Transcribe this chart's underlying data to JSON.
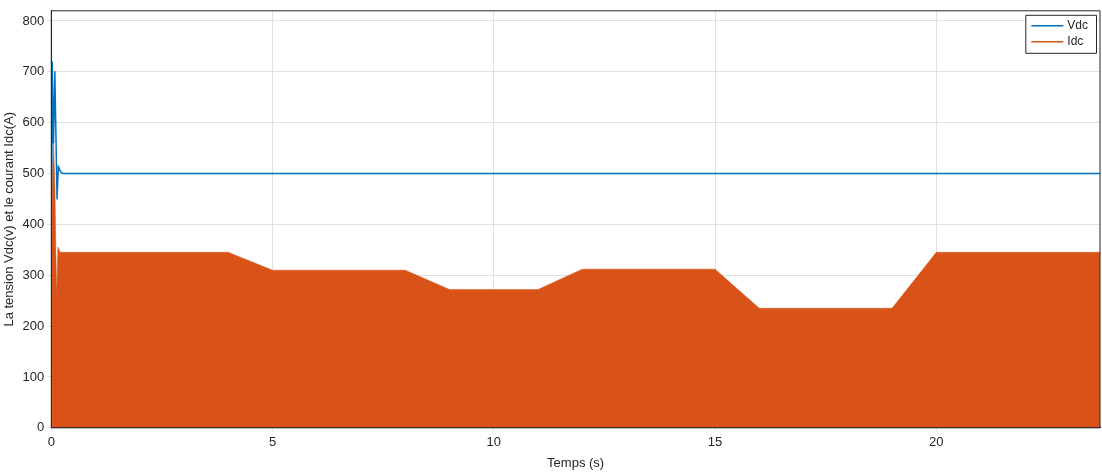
{
  "chart_data": {
    "type": "line",
    "xlabel": "Temps (s)",
    "ylabel": "La tension Vdc(v) et le courant Idc(A)",
    "xlim": [
      0,
      23.7
    ],
    "ylim": [
      0,
      820
    ],
    "xticks": [
      0,
      5,
      10,
      15,
      20
    ],
    "yticks": [
      0,
      100,
      200,
      300,
      400,
      500,
      600,
      700,
      800
    ],
    "grid": true,
    "legend": "top right",
    "line_style": "solid",
    "marker": "none",
    "series": [
      {
        "name": "Vdc",
        "color": "#0072bd",
        "x": [
          0,
          0.02,
          0.05,
          0.08,
          0.1,
          0.13,
          0.16,
          0.2,
          0.25,
          0.3,
          1,
          5,
          10,
          15,
          20,
          23.7
        ],
        "values": [
          0,
          720,
          560,
          700,
          600,
          450,
          515,
          505,
          500,
          500,
          500,
          500,
          500,
          500,
          500,
          500
        ]
      },
      {
        "name": "Idc",
        "type": "area",
        "color": "#d95319",
        "x": [
          0,
          0.02,
          0.05,
          0.08,
          0.12,
          0.15,
          0.2,
          1,
          4,
          5,
          8,
          9,
          11,
          12,
          15,
          16,
          19,
          20,
          23.7
        ],
        "values": [
          0,
          450,
          560,
          480,
          260,
          355,
          345,
          345,
          345,
          310,
          310,
          272,
          272,
          312,
          312,
          235,
          235,
          345,
          345
        ]
      }
    ]
  }
}
